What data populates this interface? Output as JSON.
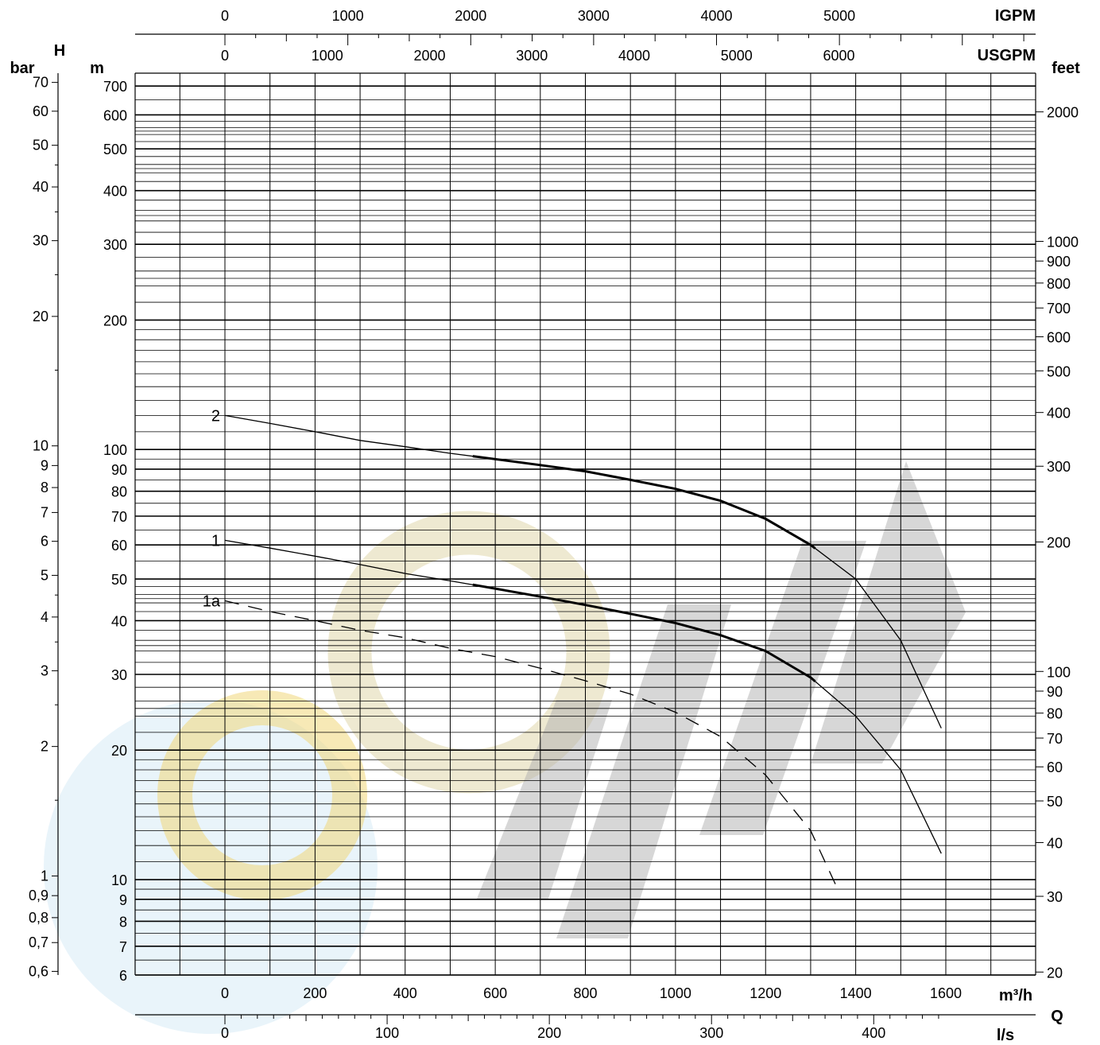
{
  "chart_data": {
    "type": "line",
    "title": "",
    "x_axis": {
      "quantity": "Q",
      "scale": "linear",
      "range": [
        -200,
        1800
      ],
      "m3h": {
        "unit": "m³/h",
        "ticks": [
          0,
          200,
          400,
          600,
          800,
          1000,
          1200,
          1400,
          1600
        ]
      },
      "ls": {
        "unit": "l/s",
        "ticks": [
          0,
          100,
          200,
          300,
          400
        ]
      },
      "usgpm": {
        "unit": "USGPM",
        "ticks": [
          0,
          1000,
          2000,
          3000,
          4000,
          5000,
          6000
        ]
      },
      "igpm": {
        "unit": "IGPM",
        "ticks": [
          0,
          1000,
          2000,
          3000,
          4000,
          5000
        ]
      }
    },
    "y_axis": {
      "quantity": "H",
      "scale": "log",
      "range_m": [
        6,
        750
      ],
      "m": {
        "unit": "m",
        "ticks": [
          6,
          7,
          8,
          9,
          10,
          20,
          30,
          40,
          50,
          60,
          70,
          80,
          90,
          100,
          200,
          300,
          400,
          500,
          600,
          700
        ]
      },
      "bar": {
        "unit": "bar",
        "ticks": [
          "0,6",
          "0,7",
          "0,8",
          "0,9",
          "1",
          "2",
          "3",
          "4",
          "5",
          "6",
          "7",
          "8",
          "9",
          "10",
          "20",
          "30",
          "40",
          "50",
          "60",
          "70"
        ]
      },
      "feet": {
        "unit": "feet",
        "ticks": [
          20,
          30,
          40,
          50,
          60,
          70,
          80,
          90,
          100,
          200,
          300,
          400,
          500,
          600,
          700,
          800,
          900,
          1000,
          2000
        ]
      }
    },
    "grid": true,
    "series": [
      {
        "name": "2",
        "style": "solid",
        "points": [
          [
            0,
            120
          ],
          [
            100,
            115
          ],
          [
            200,
            110
          ],
          [
            300,
            105
          ],
          [
            400,
            101.5
          ],
          [
            500,
            98
          ],
          [
            600,
            95
          ],
          [
            700,
            92
          ],
          [
            800,
            89
          ],
          [
            900,
            85
          ],
          [
            1000,
            81
          ],
          [
            1100,
            76
          ],
          [
            1200,
            69
          ],
          [
            1300,
            60
          ],
          [
            1400,
            50
          ],
          [
            1500,
            36
          ],
          [
            1590,
            22.5
          ]
        ],
        "bold_range": [
          550,
          1310
        ]
      },
      {
        "name": "1",
        "style": "solid",
        "points": [
          [
            0,
            61.5
          ],
          [
            100,
            59
          ],
          [
            200,
            56.5
          ],
          [
            300,
            54
          ],
          [
            400,
            51.5
          ],
          [
            500,
            49.5
          ],
          [
            600,
            47.5
          ],
          [
            700,
            45.5
          ],
          [
            800,
            43.5
          ],
          [
            900,
            41.5
          ],
          [
            1000,
            39.5
          ],
          [
            1100,
            37
          ],
          [
            1200,
            34
          ],
          [
            1300,
            29.5
          ],
          [
            1400,
            24
          ],
          [
            1500,
            18
          ],
          [
            1590,
            11.5
          ]
        ],
        "bold_range": [
          550,
          1310
        ]
      },
      {
        "name": "1a",
        "style": "dashed",
        "points": [
          [
            0,
            44.5
          ],
          [
            100,
            42
          ],
          [
            200,
            40
          ],
          [
            300,
            38
          ],
          [
            400,
            36.5
          ],
          [
            500,
            34.5
          ],
          [
            600,
            33
          ],
          [
            700,
            31
          ],
          [
            800,
            29
          ],
          [
            900,
            27
          ],
          [
            1000,
            24.5
          ],
          [
            1100,
            21.5
          ],
          [
            1200,
            17.5
          ],
          [
            1300,
            13
          ],
          [
            1360,
            9.5
          ]
        ]
      }
    ]
  }
}
